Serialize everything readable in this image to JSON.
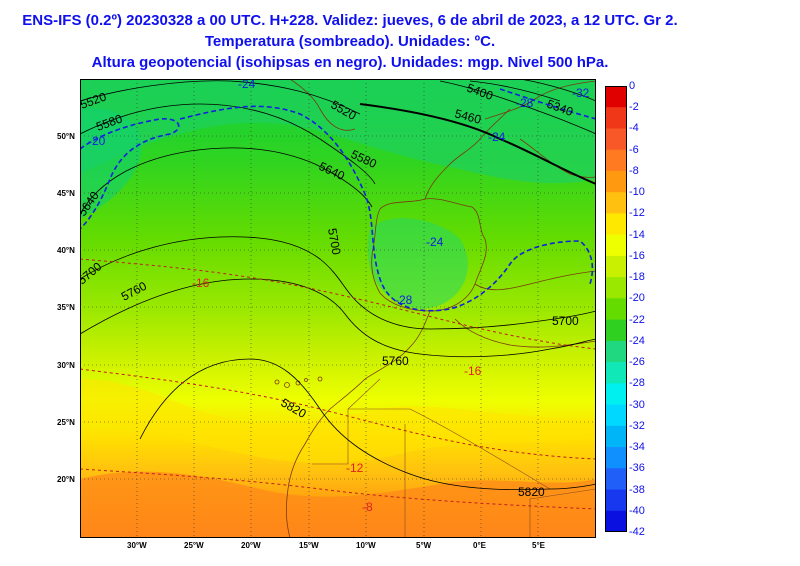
{
  "header": {
    "line1": "ENS-IFS (0.2º) 20230328 a 00 UTC. H+228. Validez: jueves, 6 de abril de 2023, a 12 UTC. Gr 2.",
    "line2": "Temperatura (sombreado). Unidades: ºC.",
    "line3": "Altura geopotencial (isohipsas en negro). Unidades: mgp. Nivel 500 hPa."
  },
  "colorbar": {
    "labels": [
      "0",
      "-2",
      "-4",
      "-6",
      "-8",
      "-10",
      "-12",
      "-14",
      "-16",
      "-18",
      "-20",
      "-22",
      "-24",
      "-26",
      "-28",
      "-30",
      "-32",
      "-34",
      "-36",
      "-38",
      "-40",
      "-42"
    ],
    "colors": [
      "#e00000",
      "#f03818",
      "#f85828",
      "#ff7a20",
      "#ff9a10",
      "#ffc010",
      "#ffe800",
      "#eeff00",
      "#c8f000",
      "#9ae800",
      "#64dc00",
      "#30d020",
      "#20d880",
      "#10e8b8",
      "#00f0f0",
      "#00d8ff",
      "#00b4f8",
      "#1090ff",
      "#2060f8",
      "#1838f0",
      "#0a10e0"
    ]
  },
  "latitude_labels": [
    "50°N",
    "45°N",
    "40°N",
    "35°N",
    "30°N",
    "25°N",
    "20°N"
  ],
  "longitude_labels": [
    "30°W",
    "25°W",
    "20°W",
    "15°W",
    "10°W",
    "5°W",
    "0°E",
    "5°E"
  ],
  "height_contour_labels": [
    "5520",
    "5580",
    "5640",
    "5700",
    "5760",
    "5820",
    "5520",
    "5580",
    "5640",
    "5700",
    "5400",
    "5460",
    "5340",
    "5700",
    "5760",
    "5820",
    "5820"
  ],
  "temperature_contour_labels": [
    "-24",
    "-20",
    "-28",
    "-32",
    "-24",
    "-24",
    "-28",
    "-16",
    "-16",
    "-12",
    "-8"
  ]
}
